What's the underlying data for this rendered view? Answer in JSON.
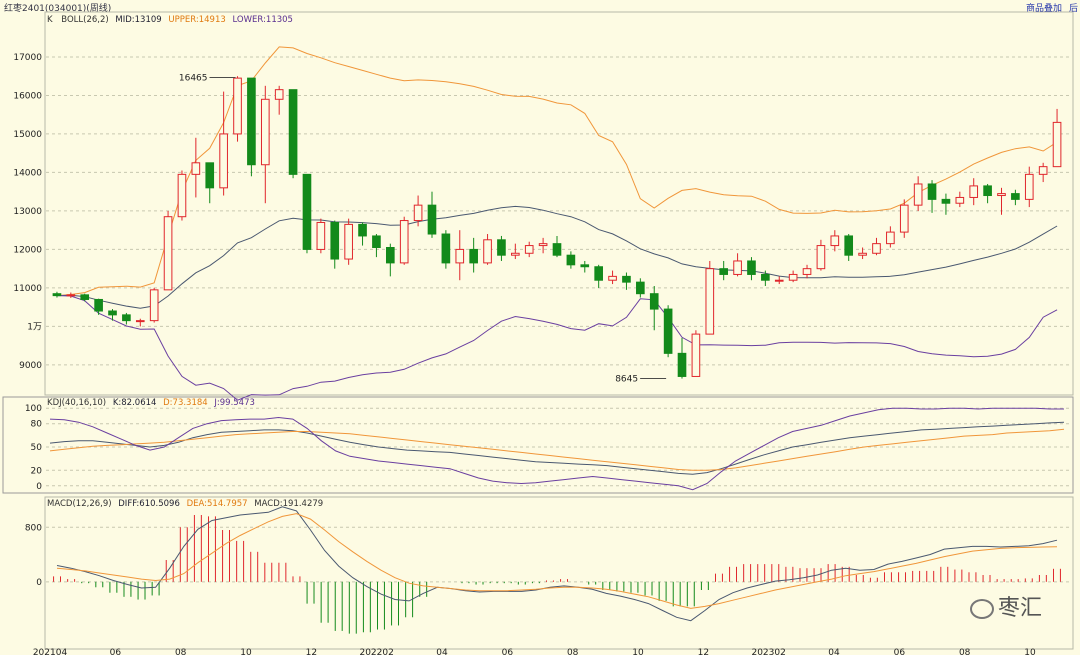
{
  "window": {
    "title": "红枣2401(034001)(周线)",
    "overlay_label": "商品叠加",
    "edge_label": "后"
  },
  "colors": {
    "up": "#e0262c",
    "down": "#138a1b",
    "mid": "#4a5870",
    "upper": "#f0963a",
    "lower": "#6a3fa0",
    "k": "#4a5870",
    "d": "#f0963a",
    "j": "#6a3fa0",
    "diff": "#4a5870",
    "dea": "#f0963a"
  },
  "watermark": {
    "text": "枣汇",
    "icon": "chat-bubble-icon"
  },
  "chart_data": [
    {
      "type": "candlestick",
      "header": {
        "k_label": "K",
        "boll": "BOLL(26,2)",
        "mid": "MID:13109",
        "upper": "UPPER:14913",
        "lower": "LOWER:11305"
      },
      "y_ticks": [
        "17000",
        "16000",
        "15000",
        "14000",
        "13000",
        "12000",
        "11000",
        "1万",
        "9000"
      ],
      "y_tick_values": [
        17000,
        16000,
        15000,
        14000,
        13000,
        12000,
        11000,
        10000,
        9000
      ],
      "ylim": [
        8400,
        17700
      ],
      "annotations": [
        {
          "text": "16465",
          "value": 16465,
          "bar": 13
        },
        {
          "text": "8645",
          "value": 8645,
          "bar": 44
        }
      ],
      "candles": [
        [
          10850,
          10800,
          10900,
          10750
        ],
        [
          10800,
          10820,
          10880,
          10740
        ],
        [
          10820,
          10700,
          10850,
          10650
        ],
        [
          10700,
          10400,
          10720,
          10300
        ],
        [
          10400,
          10300,
          10450,
          10150
        ],
        [
          10300,
          10150,
          10350,
          10050
        ],
        [
          10150,
          10150,
          10200,
          10000
        ],
        [
          10150,
          10950,
          11000,
          10100
        ],
        [
          10950,
          12850,
          13000,
          10950
        ],
        [
          12850,
          13950,
          14050,
          12750
        ],
        [
          13950,
          14250,
          14900,
          13350
        ],
        [
          14250,
          13600,
          14200,
          13200
        ],
        [
          13600,
          15000,
          16100,
          13400
        ],
        [
          15000,
          16450,
          16500,
          14800
        ],
        [
          16450,
          14200,
          14700,
          13900
        ],
        [
          14200,
          15900,
          16250,
          13200
        ],
        [
          15900,
          16150,
          16250,
          15500
        ],
        [
          16150,
          13950,
          16100,
          13850
        ],
        [
          13950,
          12000,
          13850,
          11900
        ],
        [
          12000,
          12700,
          12800,
          11900
        ],
        [
          12700,
          11750,
          12750,
          11500
        ],
        [
          11750,
          12650,
          12800,
          11600
        ],
        [
          12650,
          12350,
          12700,
          12100
        ],
        [
          12350,
          12050,
          12400,
          11800
        ],
        [
          12050,
          11650,
          12150,
          11300
        ],
        [
          11650,
          12750,
          12850,
          11600
        ],
        [
          12750,
          13150,
          13400,
          12600
        ],
        [
          13150,
          12400,
          13500,
          12300
        ],
        [
          12400,
          11650,
          12500,
          11500
        ],
        [
          11650,
          12000,
          12500,
          11200
        ],
        [
          12000,
          11650,
          12300,
          11400
        ],
        [
          11650,
          12250,
          12400,
          11600
        ],
        [
          12250,
          11850,
          12350,
          11700
        ],
        [
          11850,
          11900,
          12150,
          11750
        ],
        [
          11900,
          12100,
          12200,
          11800
        ],
        [
          12100,
          12150,
          12300,
          11900
        ],
        [
          12150,
          11850,
          12350,
          11800
        ],
        [
          11850,
          11600,
          11950,
          11500
        ],
        [
          11600,
          11550,
          11700,
          11400
        ],
        [
          11550,
          11200,
          11600,
          11000
        ],
        [
          11200,
          11300,
          11450,
          11100
        ],
        [
          11300,
          11150,
          11400,
          10950
        ],
        [
          11150,
          10850,
          11250,
          10750
        ],
        [
          10850,
          10450,
          11050,
          9900
        ],
        [
          10450,
          9300,
          10550,
          9200
        ],
        [
          9300,
          8700,
          9700,
          8645
        ],
        [
          8700,
          9800,
          9900,
          8700
        ],
        [
          9800,
          11500,
          11700,
          9800
        ],
        [
          11500,
          11350,
          11700,
          11200
        ],
        [
          11350,
          11700,
          11900,
          11300
        ],
        [
          11700,
          11350,
          11800,
          11200
        ],
        [
          11350,
          11200,
          11450,
          11050
        ],
        [
          11200,
          11200,
          11300,
          11100
        ],
        [
          11200,
          11350,
          11450,
          11150
        ],
        [
          11350,
          11500,
          11600,
          11250
        ],
        [
          11500,
          12100,
          12250,
          11450
        ],
        [
          12100,
          12350,
          12500,
          11950
        ],
        [
          12350,
          11850,
          12400,
          11700
        ],
        [
          11850,
          11900,
          12050,
          11750
        ],
        [
          11900,
          12150,
          12300,
          11850
        ],
        [
          12150,
          12450,
          12600,
          12050
        ],
        [
          12450,
          13150,
          13300,
          12300
        ],
        [
          13150,
          13700,
          13900,
          13000
        ],
        [
          13700,
          13300,
          13800,
          12950
        ],
        [
          13300,
          13200,
          13450,
          12900
        ],
        [
          13200,
          13350,
          13500,
          13100
        ],
        [
          13350,
          13650,
          13850,
          13150
        ],
        [
          13650,
          13400,
          13700,
          13200
        ],
        [
          13400,
          13450,
          13600,
          12900
        ],
        [
          13450,
          13300,
          13550,
          13150
        ],
        [
          13300,
          13950,
          14150,
          13100
        ],
        [
          13950,
          14150,
          14250,
          13750
        ],
        [
          14150,
          15300,
          15650,
          14550
        ]
      ]
    },
    {
      "type": "line",
      "header": {
        "label": "KDJ(40,16,10)",
        "k": "K:82.0614",
        "d": "D:73.3184",
        "j": "J:99.5473"
      },
      "y_ticks": [
        "100",
        "80",
        "50",
        "20",
        "0"
      ],
      "y_tick_values": [
        100,
        80,
        50,
        20,
        0
      ],
      "ylim": [
        -8,
        108
      ],
      "series": [
        {
          "name": "K",
          "values": [
            55,
            57,
            58,
            58,
            56,
            54,
            52,
            50,
            52,
            56,
            62,
            66,
            69,
            70,
            71,
            72,
            72,
            71,
            68,
            64,
            60,
            56,
            53,
            50,
            48,
            46,
            45,
            44,
            43,
            41,
            39,
            37,
            35,
            33,
            31,
            30,
            29,
            28,
            27,
            26,
            24,
            22,
            20,
            18,
            16,
            15,
            17,
            22,
            28,
            34,
            40,
            45,
            50,
            53,
            56,
            59,
            62,
            64,
            66,
            68,
            70,
            72,
            73,
            74,
            75,
            76,
            77,
            78,
            79,
            80,
            81,
            82
          ]
        },
        {
          "name": "D",
          "values": [
            45,
            47,
            49,
            51,
            52,
            53,
            54,
            55,
            56,
            58,
            60,
            62,
            64,
            66,
            67,
            68,
            69,
            70,
            70,
            69,
            68,
            67,
            65,
            63,
            61,
            59,
            57,
            55,
            53,
            51,
            49,
            47,
            45,
            43,
            41,
            39,
            37,
            35,
            33,
            31,
            29,
            27,
            25,
            23,
            21,
            20,
            20,
            21,
            23,
            26,
            29,
            32,
            35,
            38,
            41,
            44,
            47,
            50,
            52,
            54,
            56,
            58,
            60,
            62,
            64,
            65,
            66,
            68,
            69,
            70,
            71,
            73
          ]
        },
        {
          "name": "J",
          "values": [
            86,
            85,
            82,
            76,
            68,
            60,
            52,
            46,
            50,
            62,
            74,
            80,
            84,
            85,
            86,
            86,
            88,
            86,
            74,
            58,
            45,
            38,
            35,
            32,
            30,
            28,
            26,
            24,
            22,
            16,
            10,
            6,
            4,
            3,
            4,
            6,
            8,
            10,
            12,
            10,
            8,
            6,
            4,
            2,
            0,
            -5,
            3,
            18,
            32,
            42,
            52,
            62,
            70,
            74,
            78,
            84,
            90,
            94,
            98,
            100,
            100,
            99,
            99,
            100,
            100,
            99,
            100,
            100,
            100,
            100,
            99,
            99
          ]
        }
      ]
    },
    {
      "type": "bar",
      "header": {
        "label": "MACD(12,26,9)",
        "diff": "DIFF:610.5096",
        "dea": "DEA:514.7957",
        "macd": "MACD:191.4279"
      },
      "y_ticks": [
        "800",
        "0"
      ],
      "y_tick_values": [
        800,
        0
      ],
      "ylim": [
        -1000,
        1200
      ],
      "x_ticks": [
        "202104",
        "06",
        "08",
        "10",
        "12",
        "202202",
        "04",
        "06",
        "08",
        "10",
        "12",
        "202302",
        "04",
        "06",
        "08",
        "10"
      ],
      "series": [
        {
          "name": "DIFF",
          "values": [
            240,
            200,
            150,
            90,
            20,
            -40,
            -90,
            -80,
            200,
            520,
            770,
            900,
            940,
            980,
            1000,
            1020,
            1100,
            1040,
            760,
            460,
            230,
            60,
            -70,
            -180,
            -260,
            -280,
            -170,
            -80,
            -100,
            -130,
            -150,
            -140,
            -140,
            -140,
            -120,
            -80,
            -60,
            -80,
            -110,
            -170,
            -210,
            -260,
            -320,
            -420,
            -520,
            -570,
            -420,
            -260,
            -160,
            -90,
            -40,
            10,
            30,
            60,
            100,
            170,
            200,
            170,
            180,
            260,
            300,
            350,
            400,
            480,
            500,
            520,
            520,
            510,
            520,
            530,
            560,
            610
          ]
        },
        {
          "name": "DEA",
          "values": [
            200,
            180,
            160,
            130,
            100,
            70,
            40,
            20,
            40,
            120,
            280,
            420,
            560,
            680,
            780,
            880,
            960,
            1000,
            920,
            760,
            590,
            440,
            300,
            170,
            60,
            -20,
            -60,
            -80,
            -100,
            -120,
            -130,
            -130,
            -130,
            -120,
            -110,
            -90,
            -80,
            -80,
            -90,
            -110,
            -140,
            -180,
            -220,
            -280,
            -340,
            -390,
            -360,
            -320,
            -270,
            -220,
            -170,
            -120,
            -80,
            -40,
            0,
            40,
            90,
            120,
            150,
            190,
            230,
            270,
            320,
            370,
            410,
            450,
            470,
            490,
            500,
            505,
            510,
            515
          ]
        },
        {
          "name": "MACD",
          "values": [
            80,
            40,
            -20,
            -80,
            -160,
            -220,
            -260,
            -200,
            320,
            800,
            980,
            960,
            760,
            600,
            440,
            280,
            280,
            80,
            -320,
            -600,
            -720,
            -760,
            -740,
            -700,
            -640,
            -520,
            -220,
            0,
            0,
            -20,
            -40,
            -20,
            -20,
            -40,
            -20,
            20,
            40,
            0,
            -40,
            -120,
            -140,
            -160,
            -200,
            -280,
            -360,
            -360,
            -120,
            120,
            220,
            260,
            260,
            260,
            220,
            200,
            200,
            260,
            220,
            100,
            60,
            140,
            140,
            160,
            160,
            220,
            180,
            140,
            100,
            40,
            40,
            50,
            100,
            191
          ]
        }
      ]
    }
  ]
}
